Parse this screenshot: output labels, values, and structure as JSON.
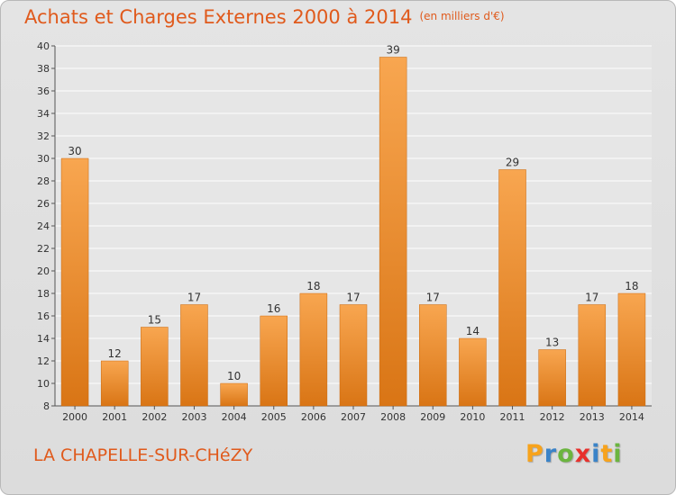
{
  "header": {
    "title": "Achats et Charges Externes 2000 à 2014",
    "unit": "(en milliers d'€)"
  },
  "footer": {
    "place": "LA CHAPELLE-SUR-CHéZY",
    "logo": "Proxiti",
    "logo_colors": [
      "#f7a31c",
      "#3a83c8",
      "#6bb53f",
      "#e8302c",
      "#3a83c8",
      "#f7a31c",
      "#6bb53f"
    ]
  },
  "colors": {
    "bar_light": "#f8a650",
    "bar_dark": "#d97515",
    "text": "#e05a1c",
    "grid": "#ffffff"
  },
  "chart_data": {
    "type": "bar",
    "categories": [
      "2000",
      "2001",
      "2002",
      "2003",
      "2004",
      "2005",
      "2006",
      "2007",
      "2008",
      "2009",
      "2010",
      "2011",
      "2012",
      "2013",
      "2014"
    ],
    "values": [
      30,
      12,
      15,
      17,
      10,
      16,
      18,
      17,
      39,
      17,
      14,
      29,
      13,
      17,
      18
    ],
    "ylim": [
      8,
      40
    ],
    "yticks": [
      8,
      10,
      12,
      14,
      16,
      18,
      20,
      22,
      24,
      26,
      28,
      30,
      32,
      34,
      36,
      38,
      40
    ],
    "grid": true,
    "data_labels": true
  }
}
